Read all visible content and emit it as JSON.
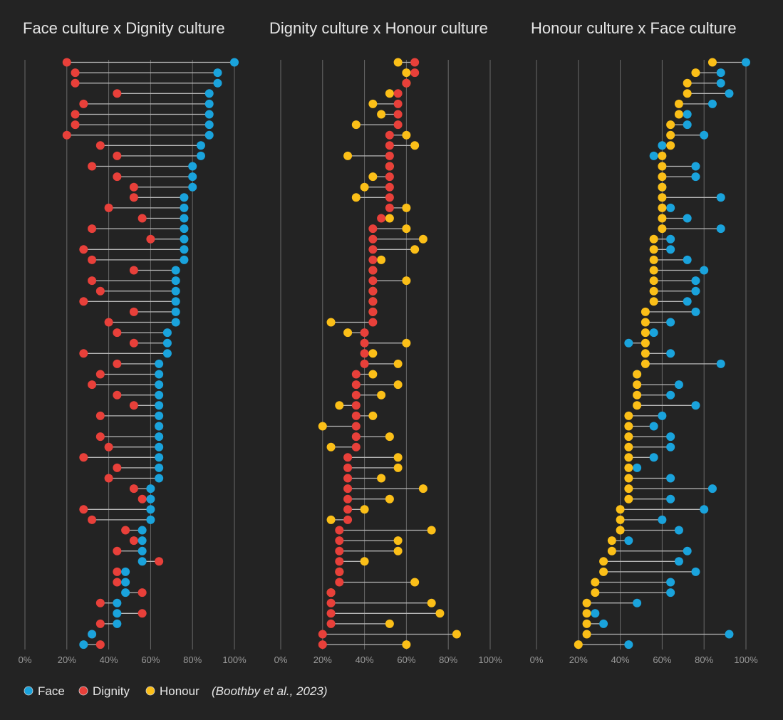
{
  "legend": {
    "items": [
      {
        "label": "Face",
        "color": "#1aa3dc"
      },
      {
        "label": "Dignity",
        "color": "#e8403a"
      },
      {
        "label": "Honour",
        "color": "#fbbf18"
      }
    ],
    "source": "(Boothby et al., 2023)"
  },
  "colors": {
    "background": "#232323",
    "grid": "#6a6a6a",
    "connector": "#b8b8b8",
    "Face": "#1aa3dc",
    "Dignity": "#e8403a",
    "Honour": "#fbbf18"
  },
  "chart_data": [
    {
      "type": "dumbbell",
      "title": "Face culture x Dignity culture",
      "series": [
        "Face",
        "Dignity"
      ],
      "xlim": [
        0,
        100
      ],
      "xticks": [
        "0%",
        "20%",
        "40%",
        "60%",
        "80%",
        "100%"
      ],
      "rows": [
        [
          100,
          20
        ],
        [
          92,
          24
        ],
        [
          92,
          24
        ],
        [
          88,
          44
        ],
        [
          88,
          28
        ],
        [
          88,
          24
        ],
        [
          88,
          24
        ],
        [
          88,
          20
        ],
        [
          84,
          36
        ],
        [
          84,
          44
        ],
        [
          80,
          32
        ],
        [
          80,
          44
        ],
        [
          80,
          52
        ],
        [
          76,
          52
        ],
        [
          76,
          40
        ],
        [
          76,
          56
        ],
        [
          76,
          32
        ],
        [
          76,
          60
        ],
        [
          76,
          28
        ],
        [
          76,
          32
        ],
        [
          72,
          52
        ],
        [
          72,
          32
        ],
        [
          72,
          36
        ],
        [
          72,
          28
        ],
        [
          72,
          52
        ],
        [
          72,
          40
        ],
        [
          68,
          44
        ],
        [
          68,
          52
        ],
        [
          68,
          28
        ],
        [
          64,
          44
        ],
        [
          64,
          36
        ],
        [
          64,
          32
        ],
        [
          64,
          44
        ],
        [
          64,
          52
        ],
        [
          64,
          36
        ],
        [
          64,
          64
        ],
        [
          64,
          36
        ],
        [
          64,
          40
        ],
        [
          64,
          28
        ],
        [
          64,
          44
        ],
        [
          64,
          40
        ],
        [
          60,
          52
        ],
        [
          60,
          56
        ],
        [
          60,
          28
        ],
        [
          60,
          32
        ],
        [
          56,
          48
        ],
        [
          56,
          52
        ],
        [
          56,
          44
        ],
        [
          56,
          64
        ],
        [
          48,
          44
        ],
        [
          48,
          44
        ],
        [
          48,
          56
        ],
        [
          44,
          36
        ],
        [
          44,
          56
        ],
        [
          44,
          36
        ],
        [
          32,
          32
        ],
        [
          28,
          36
        ]
      ]
    },
    {
      "type": "dumbbell",
      "title": "Dignity culture x Honour culture",
      "series": [
        "Dignity",
        "Honour"
      ],
      "xlim": [
        0,
        100
      ],
      "xticks": [
        "0%",
        "20%",
        "40%",
        "60%",
        "80%",
        "100%"
      ],
      "rows": [
        [
          64,
          56
        ],
        [
          64,
          60
        ],
        [
          60,
          60
        ],
        [
          56,
          52
        ],
        [
          56,
          44
        ],
        [
          56,
          48
        ],
        [
          56,
          36
        ],
        [
          52,
          60
        ],
        [
          52,
          64
        ],
        [
          52,
          32
        ],
        [
          52,
          52
        ],
        [
          52,
          44
        ],
        [
          52,
          40
        ],
        [
          52,
          36
        ],
        [
          52,
          60
        ],
        [
          48,
          52
        ],
        [
          44,
          60
        ],
        [
          44,
          68
        ],
        [
          44,
          64
        ],
        [
          44,
          48
        ],
        [
          44,
          44
        ],
        [
          44,
          60
        ],
        [
          44,
          44
        ],
        [
          44,
          44
        ],
        [
          44,
          44
        ],
        [
          44,
          24
        ],
        [
          40,
          32
        ],
        [
          40,
          60
        ],
        [
          40,
          44
        ],
        [
          40,
          56
        ],
        [
          36,
          44
        ],
        [
          36,
          56
        ],
        [
          36,
          48
        ],
        [
          36,
          28
        ],
        [
          36,
          44
        ],
        [
          36,
          20
        ],
        [
          36,
          52
        ],
        [
          36,
          24
        ],
        [
          32,
          56
        ],
        [
          32,
          56
        ],
        [
          32,
          48
        ],
        [
          32,
          68
        ],
        [
          32,
          52
        ],
        [
          32,
          40
        ],
        [
          32,
          24
        ],
        [
          28,
          72
        ],
        [
          28,
          56
        ],
        [
          28,
          56
        ],
        [
          28,
          40
        ],
        [
          28,
          28
        ],
        [
          28,
          64
        ],
        [
          24,
          24
        ],
        [
          24,
          72
        ],
        [
          24,
          76
        ],
        [
          24,
          52
        ],
        [
          20,
          84
        ],
        [
          20,
          60
        ]
      ]
    },
    {
      "type": "dumbbell",
      "title": "Honour culture x Face culture",
      "series": [
        "Honour",
        "Face"
      ],
      "xlim": [
        0,
        100
      ],
      "xticks": [
        "0%",
        "20%",
        "40%",
        "60%",
        "80%",
        "100%"
      ],
      "rows": [
        [
          84,
          100
        ],
        [
          76,
          88
        ],
        [
          72,
          88
        ],
        [
          72,
          92
        ],
        [
          68,
          84
        ],
        [
          68,
          72
        ],
        [
          64,
          72
        ],
        [
          64,
          80
        ],
        [
          64,
          60
        ],
        [
          60,
          56
        ],
        [
          60,
          76
        ],
        [
          60,
          76
        ],
        [
          60,
          60
        ],
        [
          60,
          88
        ],
        [
          60,
          64
        ],
        [
          60,
          72
        ],
        [
          60,
          88
        ],
        [
          56,
          64
        ],
        [
          56,
          64
        ],
        [
          56,
          72
        ],
        [
          56,
          80
        ],
        [
          56,
          76
        ],
        [
          56,
          76
        ],
        [
          56,
          72
        ],
        [
          52,
          76
        ],
        [
          52,
          64
        ],
        [
          52,
          56
        ],
        [
          52,
          44
        ],
        [
          52,
          64
        ],
        [
          52,
          88
        ],
        [
          48,
          48
        ],
        [
          48,
          68
        ],
        [
          48,
          64
        ],
        [
          48,
          76
        ],
        [
          44,
          60
        ],
        [
          44,
          56
        ],
        [
          44,
          64
        ],
        [
          44,
          64
        ],
        [
          44,
          56
        ],
        [
          44,
          48
        ],
        [
          44,
          64
        ],
        [
          44,
          84
        ],
        [
          44,
          64
        ],
        [
          40,
          80
        ],
        [
          40,
          60
        ],
        [
          40,
          68
        ],
        [
          36,
          44
        ],
        [
          36,
          72
        ],
        [
          32,
          68
        ],
        [
          32,
          76
        ],
        [
          28,
          64
        ],
        [
          28,
          64
        ],
        [
          24,
          48
        ],
        [
          24,
          28
        ],
        [
          24,
          32
        ],
        [
          24,
          92
        ],
        [
          20,
          44
        ]
      ]
    }
  ]
}
